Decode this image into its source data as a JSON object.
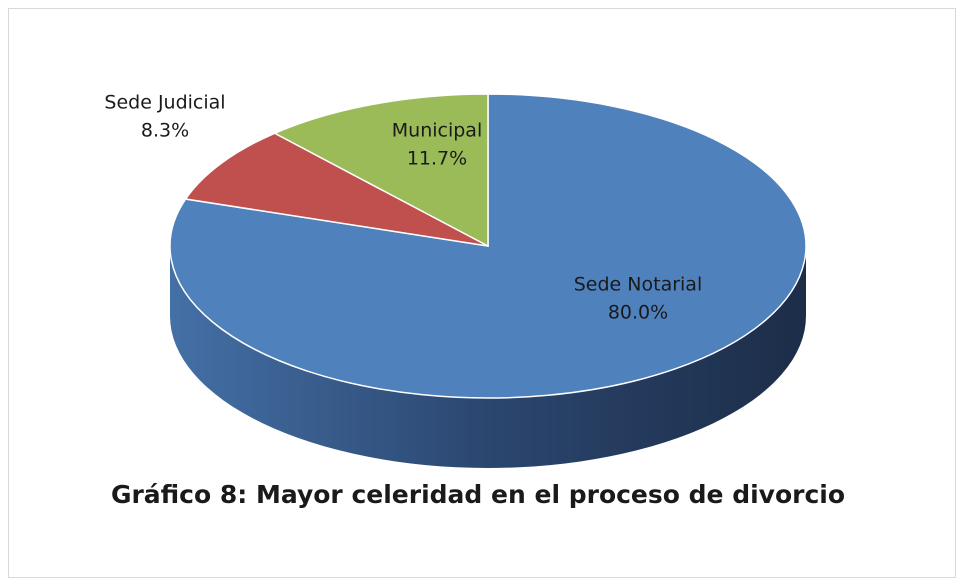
{
  "chart_data": {
    "type": "pie",
    "title": "Gráfico 8: Mayor celeridad en el proceso de divorcio",
    "categories": [
      "Sede Notarial",
      "Sede Judicial",
      "Municipal"
    ],
    "values": [
      80.0,
      8.3,
      11.7
    ],
    "value_labels": [
      "80.0%",
      "8.3%",
      "11.7%"
    ],
    "colors": [
      "#4f81bd",
      "#c0504d",
      "#9bbb59"
    ]
  }
}
